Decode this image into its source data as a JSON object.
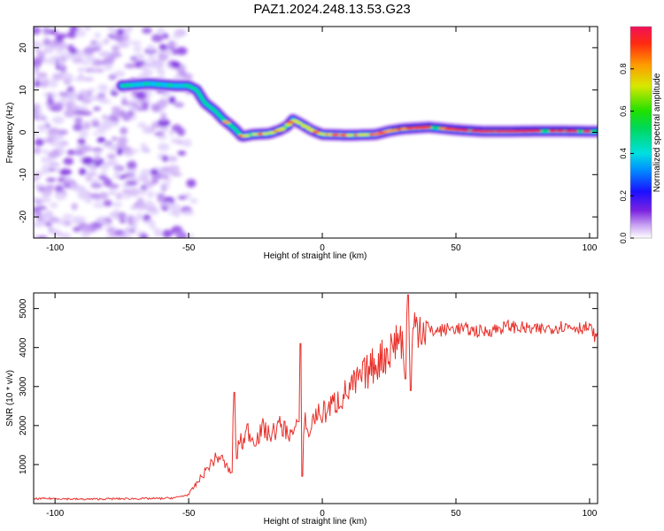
{
  "chart_data": [
    {
      "type": "heatmap",
      "title": "PAZ1.2024.248.13.53.G23",
      "xlabel": "Height of straight line (km)",
      "ylabel": "Frequency (Hz)",
      "xlim": [
        -108,
        103
      ],
      "ylim": [
        -25,
        25
      ],
      "x_ticks": [
        -100,
        -50,
        0,
        50,
        100
      ],
      "y_ticks": [
        -20,
        -10,
        0,
        10,
        20
      ],
      "colorbar": {
        "label": "Normalized spectral amplitude",
        "range": [
          0,
          1
        ],
        "ticks": [
          0.0,
          0.2,
          0.4,
          0.6,
          0.8
        ]
      },
      "ridge": {
        "x": [
          -75,
          -65,
          -55,
          -50,
          -47,
          -44,
          -40,
          -37,
          -33,
          -30,
          -26,
          -20,
          -16,
          -13,
          -11,
          -8,
          -4,
          0,
          10,
          20,
          25,
          30,
          40,
          50,
          60,
          70,
          80,
          90,
          100,
          103
        ],
        "y": [
          11,
          11.5,
          11,
          11,
          10,
          7,
          5,
          3,
          1,
          -1,
          -0.5,
          -0.3,
          0.5,
          1.5,
          3,
          2,
          0.5,
          -0.5,
          -0.7,
          -0.5,
          0.3,
          0.8,
          1.2,
          0.6,
          0.2,
          0.2,
          0.3,
          0.3,
          0.2,
          0.2
        ]
      }
    },
    {
      "type": "line",
      "xlabel": "Height of straight line (km)",
      "ylabel": "SNR (10 * v/v)",
      "xlim": [
        -108,
        103
      ],
      "ylim": [
        0,
        5400
      ],
      "x_ticks": [
        -100,
        -50,
        0,
        50,
        100
      ],
      "y_ticks": [
        1000,
        2000,
        3000,
        4000,
        5000
      ],
      "color": "#e8302a",
      "series": [
        {
          "x": [
            -108,
            -100,
            -90,
            -80,
            -70,
            -60,
            -55,
            -50,
            -48,
            -45,
            -42,
            -40,
            -38,
            -36,
            -34,
            -33,
            -32,
            -31,
            -30,
            -28,
            -26,
            -24,
            -22,
            -20,
            -18,
            -16,
            -14,
            -12,
            -10,
            -9,
            -8,
            -7.5,
            -7,
            -6,
            -5,
            -4,
            -2,
            0,
            5,
            10,
            15,
            20,
            25,
            28,
            30,
            31,
            32,
            33,
            34,
            36,
            40,
            45,
            50,
            60,
            70,
            80,
            90,
            100,
            103
          ],
          "y": [
            120,
            130,
            110,
            120,
            125,
            130,
            150,
            230,
            420,
            700,
            1000,
            1150,
            1200,
            950,
            800,
            2850,
            1150,
            1700,
            1500,
            1900,
            1650,
            1700,
            1950,
            1750,
            1850,
            2000,
            1900,
            1800,
            1800,
            2100,
            4100,
            700,
            1900,
            2200,
            1600,
            2100,
            2300,
            2300,
            2600,
            2900,
            3250,
            3600,
            3900,
            4250,
            4200,
            3200,
            5350,
            2900,
            4500,
            4650,
            4400,
            4450,
            4500,
            4400,
            4550,
            4450,
            4550,
            4500,
            4200
          ]
        }
      ]
    }
  ]
}
